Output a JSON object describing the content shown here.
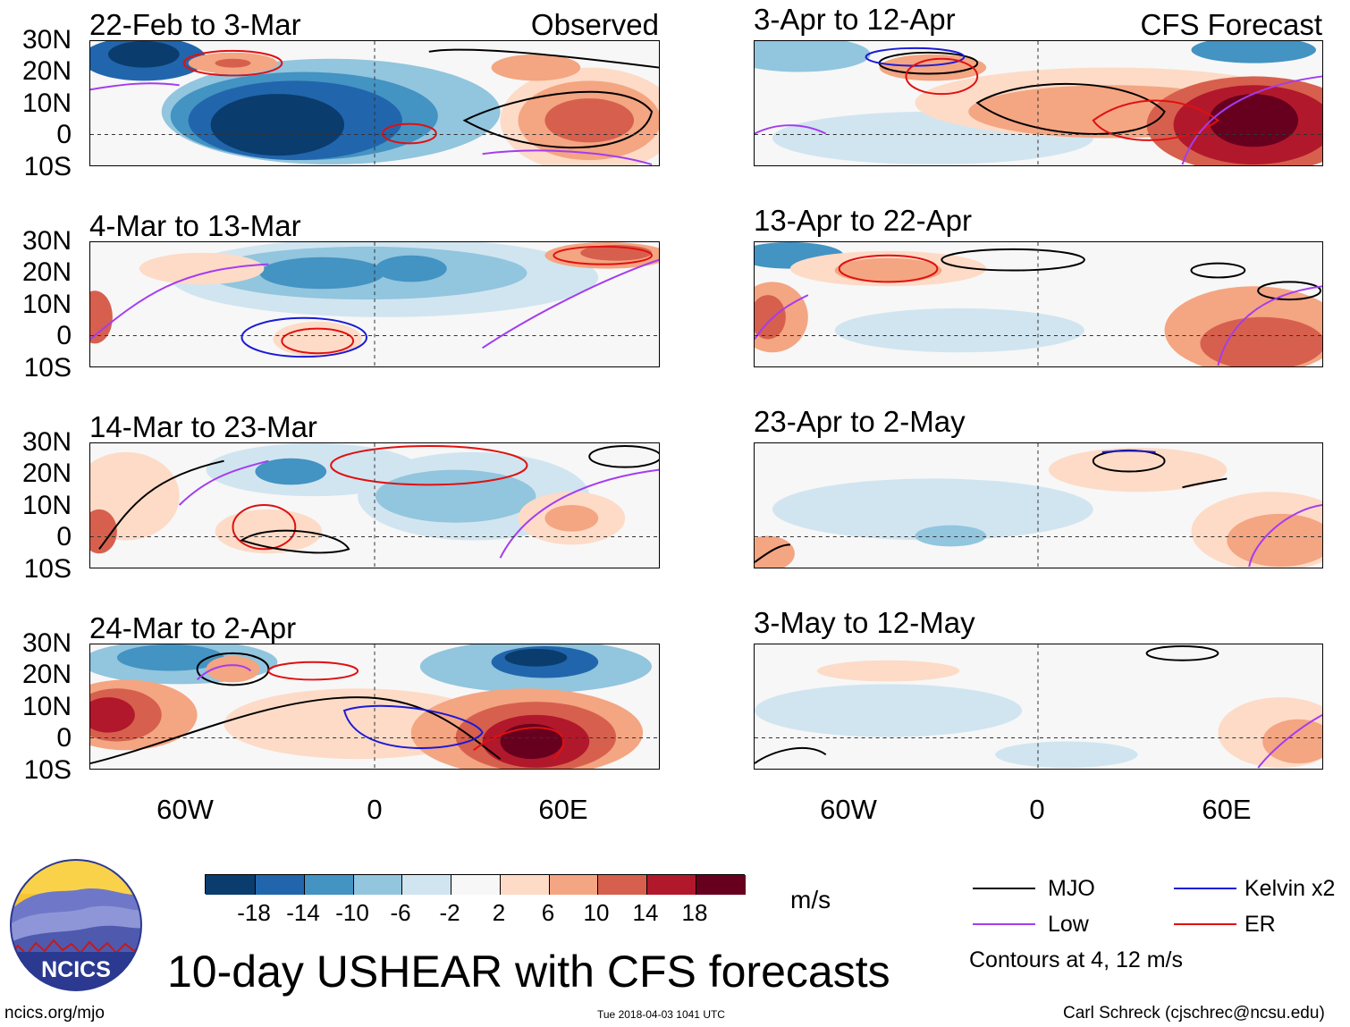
{
  "figure": {
    "title": "10-day USHEAR with CFS forecasts",
    "units": "m/s",
    "observed_label": "Observed",
    "forecast_label": "CFS Forecast",
    "lat_ticks": [
      "30N",
      "20N",
      "10N",
      "0",
      "10S"
    ],
    "lon_ticks": [
      "60W",
      "0",
      "60E"
    ]
  },
  "panels": [
    {
      "title": "22-Feb to 3-Mar"
    },
    {
      "title": "4-Mar to 13-Mar"
    },
    {
      "title": "14-Mar to 23-Mar"
    },
    {
      "title": "24-Mar to 2-Apr"
    },
    {
      "title": "3-Apr to 12-Apr"
    },
    {
      "title": "13-Apr to 22-Apr"
    },
    {
      "title": "23-Apr to 2-May"
    },
    {
      "title": "3-May to 12-May"
    }
  ],
  "colorbar": {
    "labels": [
      "-18",
      "-14",
      "-10",
      "-6",
      "-2",
      "2",
      "6",
      "10",
      "14",
      "18"
    ],
    "colors": [
      "#0b3c6e",
      "#2166ac",
      "#4393c3",
      "#92c5de",
      "#d1e5f0",
      "#f7f7f7",
      "#fddbc7",
      "#f4a582",
      "#d6604d",
      "#b2182b",
      "#67001f"
    ]
  },
  "legend": {
    "items": [
      {
        "label": "MJO",
        "color": "#000000"
      },
      {
        "label": "Kelvin x2",
        "color": "#1a1ad6"
      },
      {
        "label": "Low",
        "color": "#a43cf0"
      },
      {
        "label": "ER",
        "color": "#e01010"
      }
    ],
    "note": "Contours at 4, 12 m/s"
  },
  "logo": {
    "text": "NCICS"
  },
  "footer": {
    "left": "ncics.org/mjo",
    "center": "Tue 2018-04-03 1041 UTC",
    "right": "Carl Schreck (cjschrec@ncsu.edu)"
  }
}
